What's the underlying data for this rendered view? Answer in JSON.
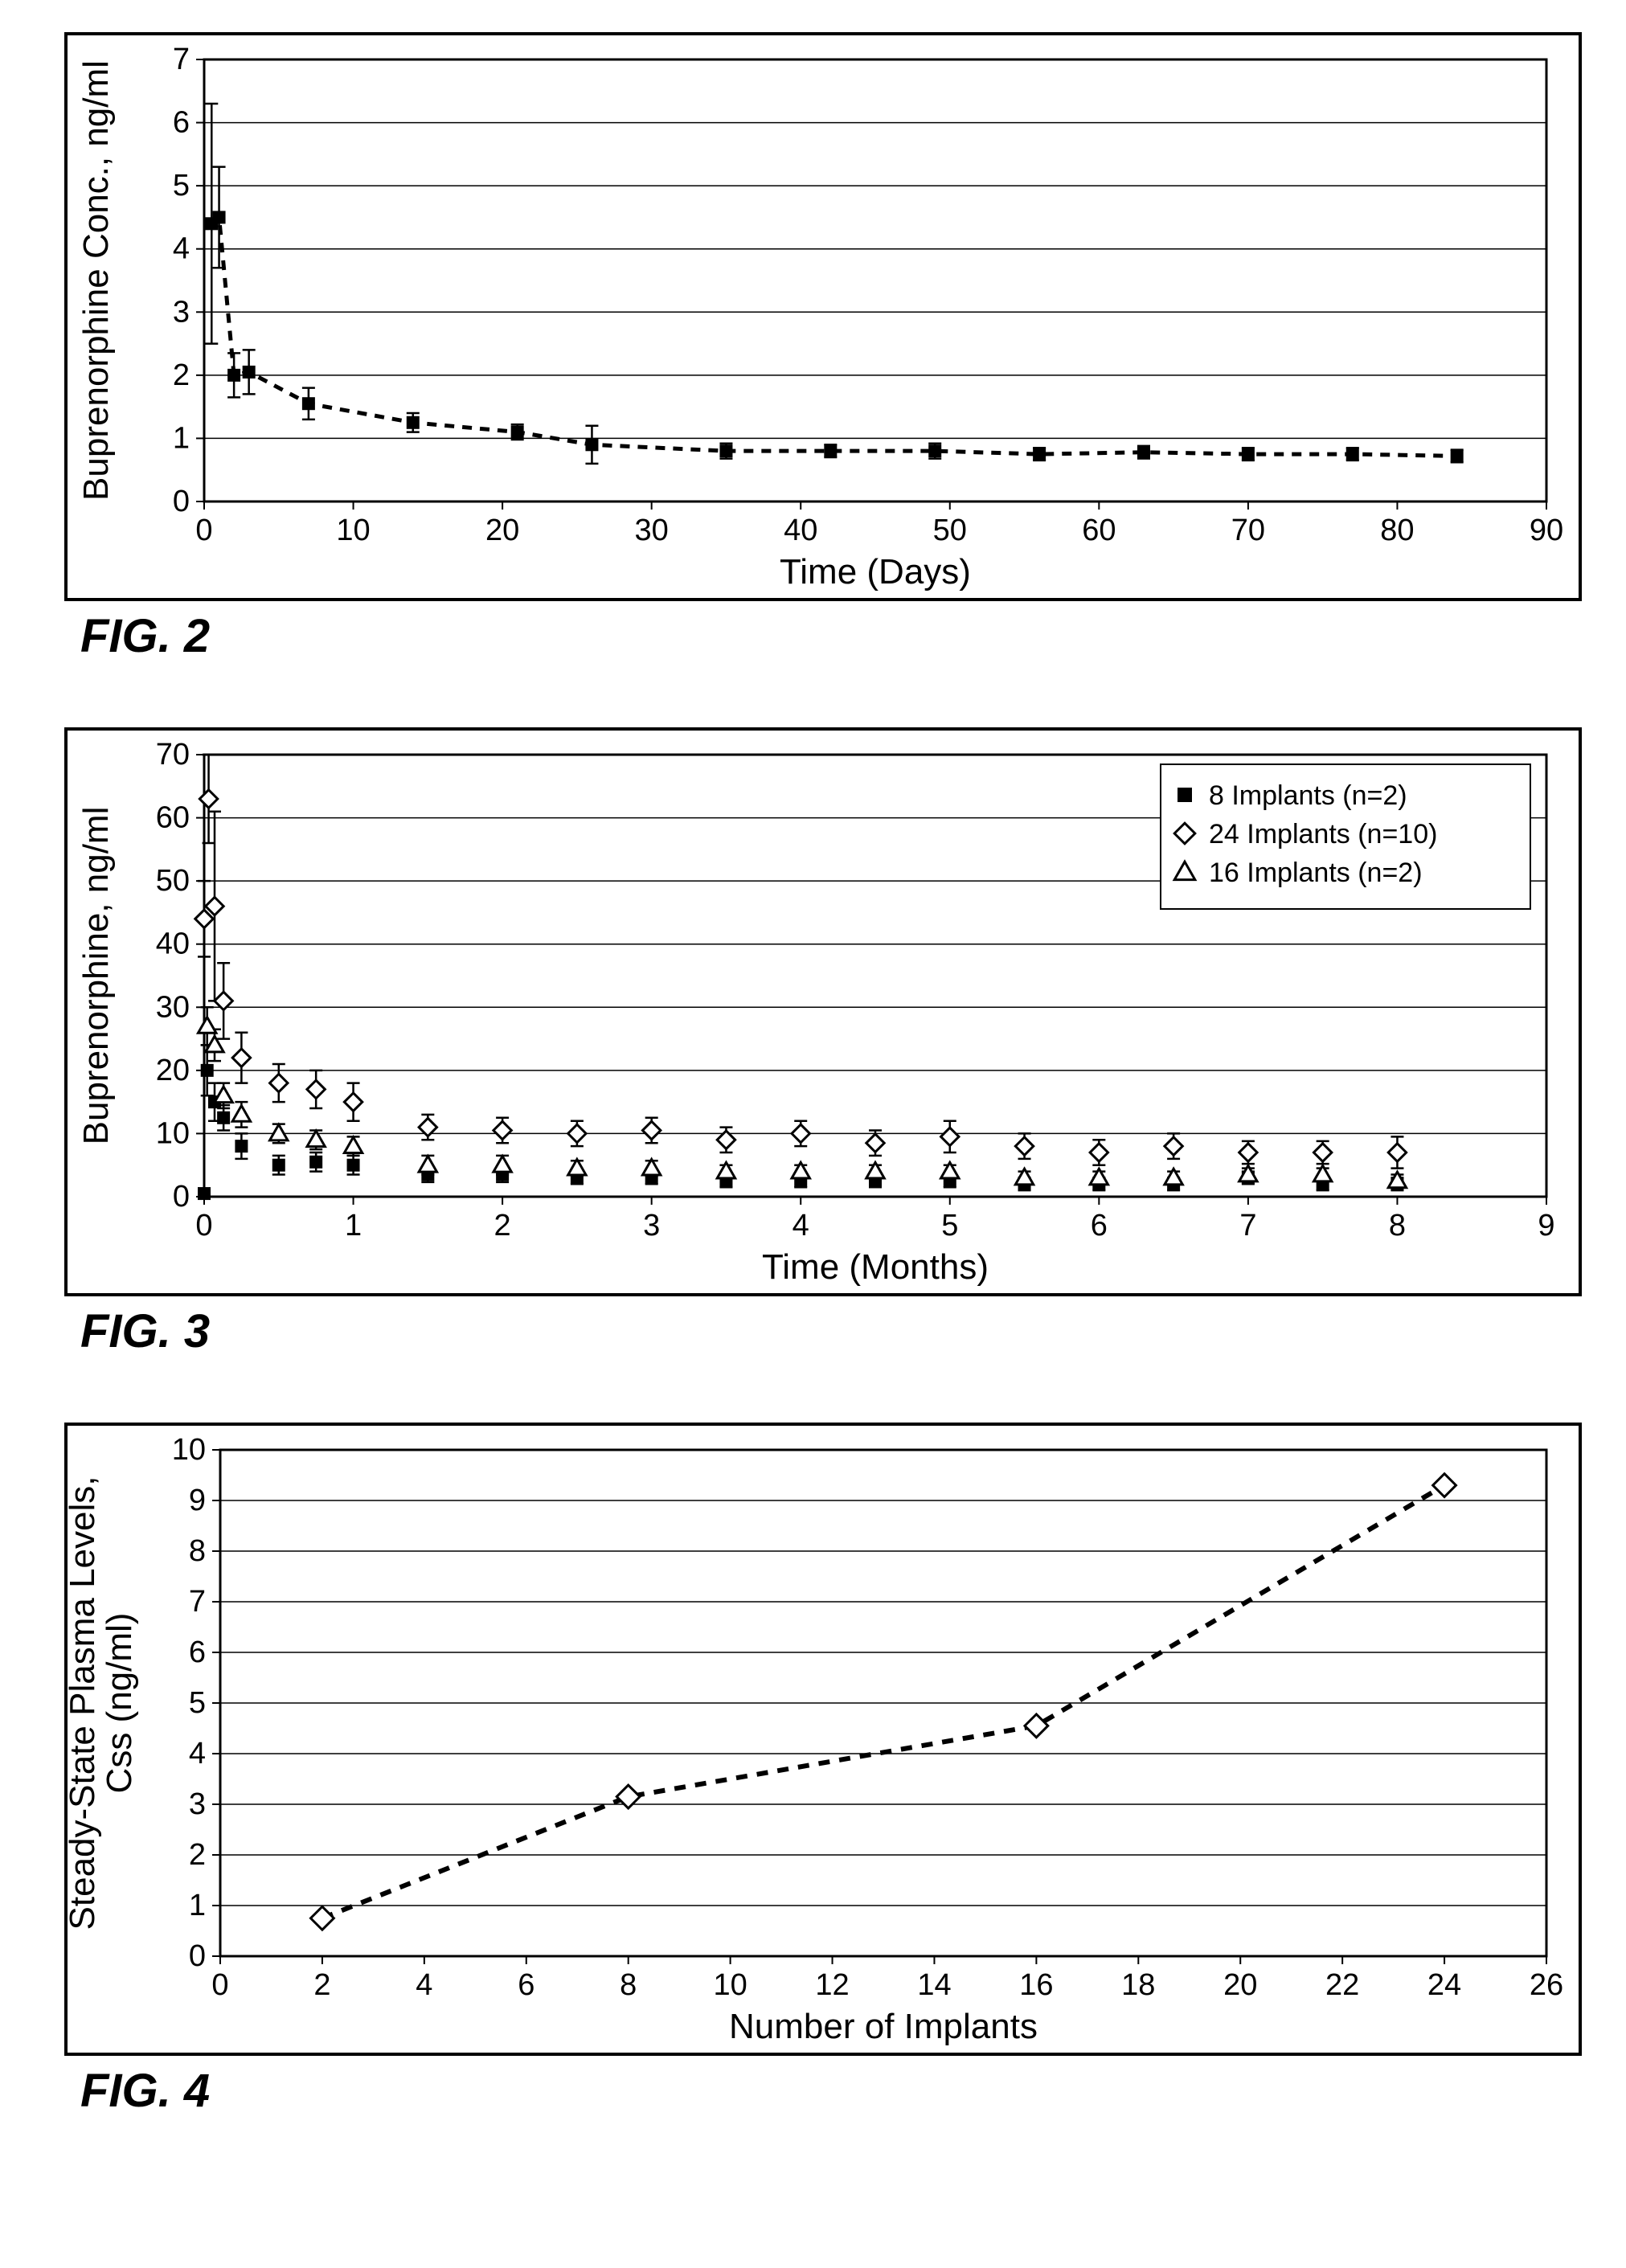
{
  "fig2": {
    "caption": "FIG. 2",
    "type": "line-scatter",
    "xlabel": "Time (Days)",
    "ylabel": "Buprenorphine Conc., ng/ml",
    "label_fontsize": 44,
    "tick_fontsize": 38,
    "xlim": [
      0,
      90
    ],
    "ylim": [
      0,
      7
    ],
    "xtick_step": 10,
    "ytick_step": 1,
    "line_color": "#000000",
    "marker": "filled-square",
    "marker_color": "#000000",
    "marker_size": 14,
    "line_dash": "12 10",
    "line_width": 5,
    "grid_color": "#000000",
    "grid_width": 1.5,
    "background_color": "#ffffff",
    "data": [
      {
        "x": 0.5,
        "y": 4.4,
        "err": 1.9
      },
      {
        "x": 1,
        "y": 4.5,
        "err": 0.8
      },
      {
        "x": 2,
        "y": 2.0,
        "err": 0.35
      },
      {
        "x": 3,
        "y": 2.05,
        "err": 0.35
      },
      {
        "x": 7,
        "y": 1.55,
        "err": 0.25
      },
      {
        "x": 14,
        "y": 1.25,
        "err": 0.15
      },
      {
        "x": 21,
        "y": 1.1,
        "err": 0.12
      },
      {
        "x": 26,
        "y": 0.9,
        "err": 0.3
      },
      {
        "x": 35,
        "y": 0.8,
        "err": 0.12
      },
      {
        "x": 42,
        "y": 0.8,
        "err": 0.1
      },
      {
        "x": 49,
        "y": 0.8,
        "err": 0.12
      },
      {
        "x": 56,
        "y": 0.75,
        "err": 0.1
      },
      {
        "x": 63,
        "y": 0.78,
        "err": 0.1
      },
      {
        "x": 70,
        "y": 0.75,
        "err": 0.1
      },
      {
        "x": 77,
        "y": 0.75,
        "err": 0.1
      },
      {
        "x": 84,
        "y": 0.72,
        "err": 0.1
      }
    ]
  },
  "fig3": {
    "caption": "FIG. 3",
    "type": "line-scatter-multi",
    "xlabel": "Time (Months)",
    "ylabel": "Buprenorphine, ng/ml",
    "label_fontsize": 44,
    "tick_fontsize": 38,
    "xlim": [
      0,
      9
    ],
    "ylim": [
      0,
      70
    ],
    "xtick_step": 1,
    "ytick_step": 10,
    "grid_color": "#000000",
    "grid_width": 1.5,
    "background_color": "#ffffff",
    "line_width": 4,
    "marker_size": 14,
    "legend": {
      "position": "top-right",
      "items": [
        {
          "label": "8 Implants (n=2)",
          "marker": "filled-square",
          "color": "#000000"
        },
        {
          "label": "24 Implants (n=10)",
          "marker": "open-diamond",
          "color": "#000000"
        },
        {
          "label": "16 Implants (n=2)",
          "marker": "open-triangle",
          "color": "#000000"
        }
      ],
      "border_color": "#000000",
      "font_size": 34
    },
    "series": [
      {
        "key": "8imp",
        "marker": "filled-square",
        "color": "#000000",
        "fill": "#000000",
        "data": [
          {
            "x": 0,
            "y": 0.5,
            "err": 0.2
          },
          {
            "x": 0.02,
            "y": 20,
            "err": 4
          },
          {
            "x": 0.07,
            "y": 15,
            "err": 3
          },
          {
            "x": 0.13,
            "y": 12.5,
            "err": 2
          },
          {
            "x": 0.25,
            "y": 8,
            "err": 2
          },
          {
            "x": 0.5,
            "y": 5,
            "err": 1.5
          },
          {
            "x": 0.75,
            "y": 5.5,
            "err": 1.5
          },
          {
            "x": 1,
            "y": 5,
            "err": 1.5
          },
          {
            "x": 1.5,
            "y": 3.5,
            "err": 1.2
          },
          {
            "x": 2,
            "y": 3.5,
            "err": 1.2
          },
          {
            "x": 2.5,
            "y": 3,
            "err": 1
          },
          {
            "x": 3,
            "y": 3,
            "err": 1
          },
          {
            "x": 3.5,
            "y": 2.5,
            "err": 1
          },
          {
            "x": 4,
            "y": 2.5,
            "err": 1
          },
          {
            "x": 4.5,
            "y": 2.5,
            "err": 1
          },
          {
            "x": 5,
            "y": 2.5,
            "err": 1
          },
          {
            "x": 5.5,
            "y": 2,
            "err": 1
          },
          {
            "x": 6,
            "y": 2,
            "err": 1
          },
          {
            "x": 6.5,
            "y": 2,
            "err": 1
          },
          {
            "x": 7,
            "y": 3,
            "err": 1
          },
          {
            "x": 7.5,
            "y": 2,
            "err": 1
          },
          {
            "x": 8,
            "y": 2,
            "err": 1
          }
        ]
      },
      {
        "key": "16imp",
        "marker": "open-triangle",
        "color": "#000000",
        "fill": "#ffffff",
        "data": [
          {
            "x": 0.02,
            "y": 27,
            "err": 3
          },
          {
            "x": 0.07,
            "y": 24,
            "err": 2.5
          },
          {
            "x": 0.13,
            "y": 16,
            "err": 2
          },
          {
            "x": 0.25,
            "y": 13,
            "err": 2
          },
          {
            "x": 0.5,
            "y": 10,
            "err": 1.5
          },
          {
            "x": 0.75,
            "y": 9,
            "err": 1.5
          },
          {
            "x": 1,
            "y": 8,
            "err": 1.5
          },
          {
            "x": 1.5,
            "y": 5,
            "err": 1.5
          },
          {
            "x": 2,
            "y": 5,
            "err": 1.5
          },
          {
            "x": 2.5,
            "y": 4.5,
            "err": 1.2
          },
          {
            "x": 3,
            "y": 4.5,
            "err": 1.2
          },
          {
            "x": 3.5,
            "y": 4,
            "err": 1
          },
          {
            "x": 4,
            "y": 4,
            "err": 1
          },
          {
            "x": 4.5,
            "y": 4,
            "err": 1
          },
          {
            "x": 5,
            "y": 4,
            "err": 1
          },
          {
            "x": 5.5,
            "y": 3,
            "err": 1
          },
          {
            "x": 6,
            "y": 3,
            "err": 1
          },
          {
            "x": 6.5,
            "y": 3,
            "err": 1
          },
          {
            "x": 7,
            "y": 3.5,
            "err": 1
          },
          {
            "x": 7.5,
            "y": 3.5,
            "err": 1
          },
          {
            "x": 8,
            "y": 2.5,
            "err": 1
          }
        ]
      },
      {
        "key": "24imp",
        "marker": "open-diamond",
        "color": "#000000",
        "fill": "#ffffff",
        "data": [
          {
            "x": 0,
            "y": 44,
            "err": 6
          },
          {
            "x": 0.03,
            "y": 63,
            "err": 7
          },
          {
            "x": 0.07,
            "y": 46,
            "err": 15
          },
          {
            "x": 0.13,
            "y": 31,
            "err": 6
          },
          {
            "x": 0.25,
            "y": 22,
            "err": 4
          },
          {
            "x": 0.5,
            "y": 18,
            "err": 3
          },
          {
            "x": 0.75,
            "y": 17,
            "err": 3
          },
          {
            "x": 1,
            "y": 15,
            "err": 3
          },
          {
            "x": 1.5,
            "y": 11,
            "err": 2
          },
          {
            "x": 2,
            "y": 10.5,
            "err": 2
          },
          {
            "x": 2.5,
            "y": 10,
            "err": 2
          },
          {
            "x": 3,
            "y": 10.5,
            "err": 2
          },
          {
            "x": 3.5,
            "y": 9,
            "err": 2
          },
          {
            "x": 4,
            "y": 10,
            "err": 2
          },
          {
            "x": 4.5,
            "y": 8.5,
            "err": 2
          },
          {
            "x": 5,
            "y": 9.5,
            "err": 2.5
          },
          {
            "x": 5.5,
            "y": 8,
            "err": 2
          },
          {
            "x": 6,
            "y": 7,
            "err": 2
          },
          {
            "x": 6.5,
            "y": 8,
            "err": 2
          },
          {
            "x": 7,
            "y": 7,
            "err": 1.8
          },
          {
            "x": 7.5,
            "y": 7,
            "err": 1.8
          },
          {
            "x": 8,
            "y": 7,
            "err": 2.5
          }
        ]
      }
    ]
  },
  "fig4": {
    "caption": "FIG. 4",
    "type": "line-scatter",
    "xlabel": "Number of Implants",
    "ylabel": "Steady-State Plasma Levels, Css (ng/ml)",
    "label_fontsize": 44,
    "tick_fontsize": 38,
    "xlim": [
      0,
      26
    ],
    "ylim": [
      0,
      10
    ],
    "xtick_step": 2,
    "ytick_step": 1,
    "line_color": "#000000",
    "marker": "open-diamond",
    "marker_color": "#000000",
    "marker_fill": "#ffffff",
    "marker_size": 18,
    "line_dash": "14 12",
    "line_width": 6,
    "grid_color": "#000000",
    "grid_width": 1.5,
    "background_color": "#ffffff",
    "data": [
      {
        "x": 2,
        "y": 0.75
      },
      {
        "x": 8,
        "y": 3.15
      },
      {
        "x": 16,
        "y": 4.55
      },
      {
        "x": 24,
        "y": 9.3
      }
    ]
  }
}
